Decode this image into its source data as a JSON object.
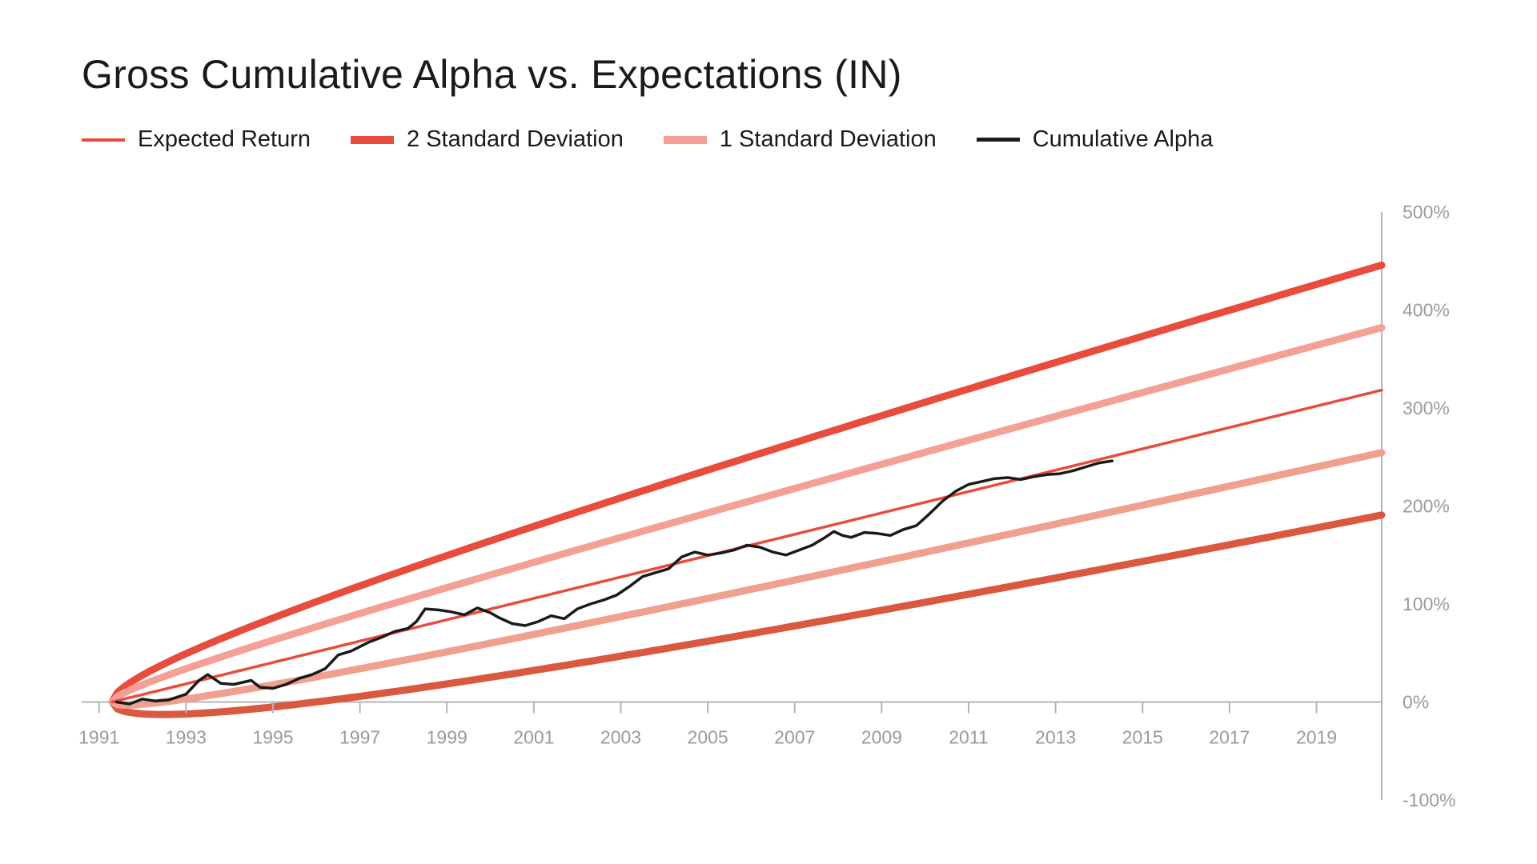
{
  "chart_data": {
    "type": "line",
    "title": "Gross Cumulative Alpha vs. Expectations (IN)",
    "xlabel": "",
    "ylabel": "",
    "xlim": [
      1990.6,
      2020.5
    ],
    "ylim": [
      -100,
      500
    ],
    "grid": false,
    "legend_position": "top-left",
    "x_ticks": [
      "1991",
      "1993",
      "1995",
      "1997",
      "1999",
      "2001",
      "2003",
      "2005",
      "2007",
      "2009",
      "2011",
      "2013",
      "2015",
      "2017",
      "2019"
    ],
    "y_ticks": [
      "500%",
      "400%",
      "300%",
      "200%",
      "100%",
      "0%",
      "-100%"
    ],
    "legend": [
      {
        "label": "Expected Return",
        "color": "#e84c3d",
        "style": "thin"
      },
      {
        "label": "2 Standard Deviation",
        "color": "#e84c3d",
        "style": "thick"
      },
      {
        "label": "1 Standard Deviation",
        "color": "#f5a096",
        "style": "thick"
      },
      {
        "label": "Cumulative Alpha",
        "color": "#1a1a1a",
        "style": "medium"
      }
    ],
    "expectation_model": {
      "start_year": 1991.3,
      "expected_return_pct_per_year": 10.9,
      "std_dev_pct_per_sqrt_year": 11.8
    },
    "series": [
      {
        "name": "Expected Return",
        "x": [
          1991.3,
          1995,
          2000,
          2005,
          2010,
          2015,
          2020.5
        ],
        "values": [
          0,
          40,
          95,
          150,
          204,
          259,
          318
        ]
      },
      {
        "name": "+2 Standard Deviation",
        "x": [
          1991.3,
          1992,
          1993,
          1995,
          1997,
          2000,
          2005,
          2010,
          2015,
          2020.5
        ],
        "values": [
          0,
          28,
          50,
          85,
          118,
          164,
          237,
          306,
          375,
          446
        ]
      },
      {
        "name": "+1 Standard Deviation",
        "x": [
          1991.3,
          1992,
          1993,
          1995,
          1997,
          2000,
          2005,
          2010,
          2015,
          2020.5
        ],
        "values": [
          0,
          17,
          32,
          63,
          90,
          130,
          193,
          255,
          317,
          382
        ]
      },
      {
        "name": "-1 Standard Deviation",
        "x": [
          1991.3,
          1992,
          1993,
          1995,
          1997,
          2000,
          2005,
          2010,
          2015,
          2020.5
        ],
        "values": [
          0,
          -2,
          5,
          17,
          34,
          60,
          106,
          153,
          201,
          254
        ]
      },
      {
        "name": "-2 Standard Deviation",
        "x": [
          1991.3,
          1992,
          1993,
          1995,
          1997,
          2000,
          2005,
          2010,
          2015,
          2020.5
        ],
        "values": [
          0,
          -12,
          -12,
          -5,
          7,
          26,
          63,
          102,
          143,
          190
        ]
      },
      {
        "name": "Cumulative Alpha",
        "x": [
          1991.4,
          1991.7,
          1992.0,
          1992.3,
          1992.6,
          1993.0,
          1993.3,
          1993.5,
          1993.8,
          1994.1,
          1994.3,
          1994.5,
          1994.7,
          1995.0,
          1995.3,
          1995.6,
          1995.9,
          1996.2,
          1996.5,
          1996.8,
          1997.2,
          1997.5,
          1997.8,
          1998.1,
          1998.3,
          1998.5,
          1998.8,
          1999.1,
          1999.4,
          1999.7,
          2000.0,
          2000.2,
          2000.5,
          2000.8,
          2001.1,
          2001.4,
          2001.7,
          2002.0,
          2002.3,
          2002.6,
          2002.9,
          2003.2,
          2003.5,
          2003.8,
          2004.1,
          2004.4,
          2004.7,
          2005.0,
          2005.3,
          2005.6,
          2005.9,
          2006.2,
          2006.5,
          2006.8,
          2007.1,
          2007.4,
          2007.7,
          2007.9,
          2008.1,
          2008.3,
          2008.6,
          2008.9,
          2009.2,
          2009.5,
          2009.8,
          2010.1,
          2010.4,
          2010.7,
          2011.0,
          2011.3,
          2011.6,
          2011.9,
          2012.2,
          2012.5,
          2012.8,
          2013.1,
          2013.4,
          2013.7,
          2014.0,
          2014.3
        ],
        "values": [
          0,
          -2,
          3,
          1,
          2,
          8,
          22,
          28,
          19,
          18,
          20,
          22,
          15,
          14,
          18,
          24,
          28,
          34,
          48,
          52,
          61,
          66,
          72,
          75,
          82,
          95,
          94,
          92,
          89,
          96,
          91,
          86,
          80,
          78,
          82,
          88,
          85,
          95,
          100,
          104,
          109,
          118,
          128,
          132,
          136,
          148,
          153,
          150,
          152,
          155,
          160,
          158,
          153,
          150,
          155,
          160,
          168,
          174,
          170,
          168,
          173,
          172,
          170,
          176,
          180,
          192,
          205,
          215,
          222,
          225,
          228,
          229,
          227,
          230,
          232,
          233,
          236,
          240,
          244,
          246
        ]
      }
    ]
  }
}
